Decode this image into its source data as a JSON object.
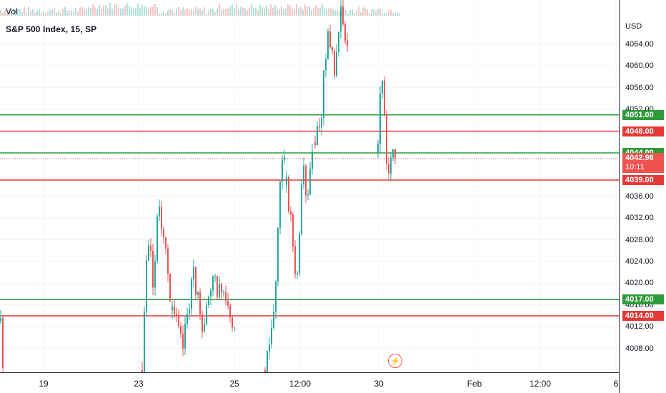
{
  "chart": {
    "title": "S&P 500 Index, 15, SP",
    "volume_label": "Vol",
    "currency": "USD"
  },
  "price_axis": {
    "ticks": [
      {
        "label": "4064.00",
        "value": 4064
      },
      {
        "label": "4060.00",
        "value": 4060
      },
      {
        "label": "4056.00",
        "value": 4056
      },
      {
        "label": "4052.00",
        "value": 4052
      },
      {
        "label": "4036.00",
        "value": 4036
      },
      {
        "label": "4032.00",
        "value": 4032
      },
      {
        "label": "4028.00",
        "value": 4028
      },
      {
        "label": "4024.00",
        "value": 4024
      },
      {
        "label": "4020.00",
        "value": 4020
      },
      {
        "label": "4016.00",
        "value": 4016
      },
      {
        "label": "4012.00",
        "value": 4012
      },
      {
        "label": "4008.00",
        "value": 4008
      }
    ]
  },
  "levels": [
    {
      "label": "4051.00",
      "value": 4051,
      "color": "green"
    },
    {
      "label": "4048.00",
      "value": 4048,
      "color": "red"
    },
    {
      "label": "4044.00",
      "value": 4044,
      "color": "green"
    },
    {
      "label": "4039.00",
      "value": 4039,
      "color": "red"
    },
    {
      "label": "4017.00",
      "value": 4017,
      "color": "green"
    },
    {
      "label": "4014.00",
      "value": 4014,
      "color": "red"
    }
  ],
  "current_price": {
    "label": "4042.96",
    "value": 4042.96,
    "countdown": "10:11"
  },
  "time_axis": {
    "labels": [
      "19",
      "23",
      "25",
      "12:00",
      "30",
      "Feb",
      "12:00",
      "6"
    ]
  },
  "colors": {
    "up": "#26a69a",
    "down": "#ef5350",
    "level_green": "#2e9c3a",
    "level_red": "#e53935",
    "grid": "#f0f3fa"
  },
  "icons": {
    "replay": "lightning-icon"
  }
}
